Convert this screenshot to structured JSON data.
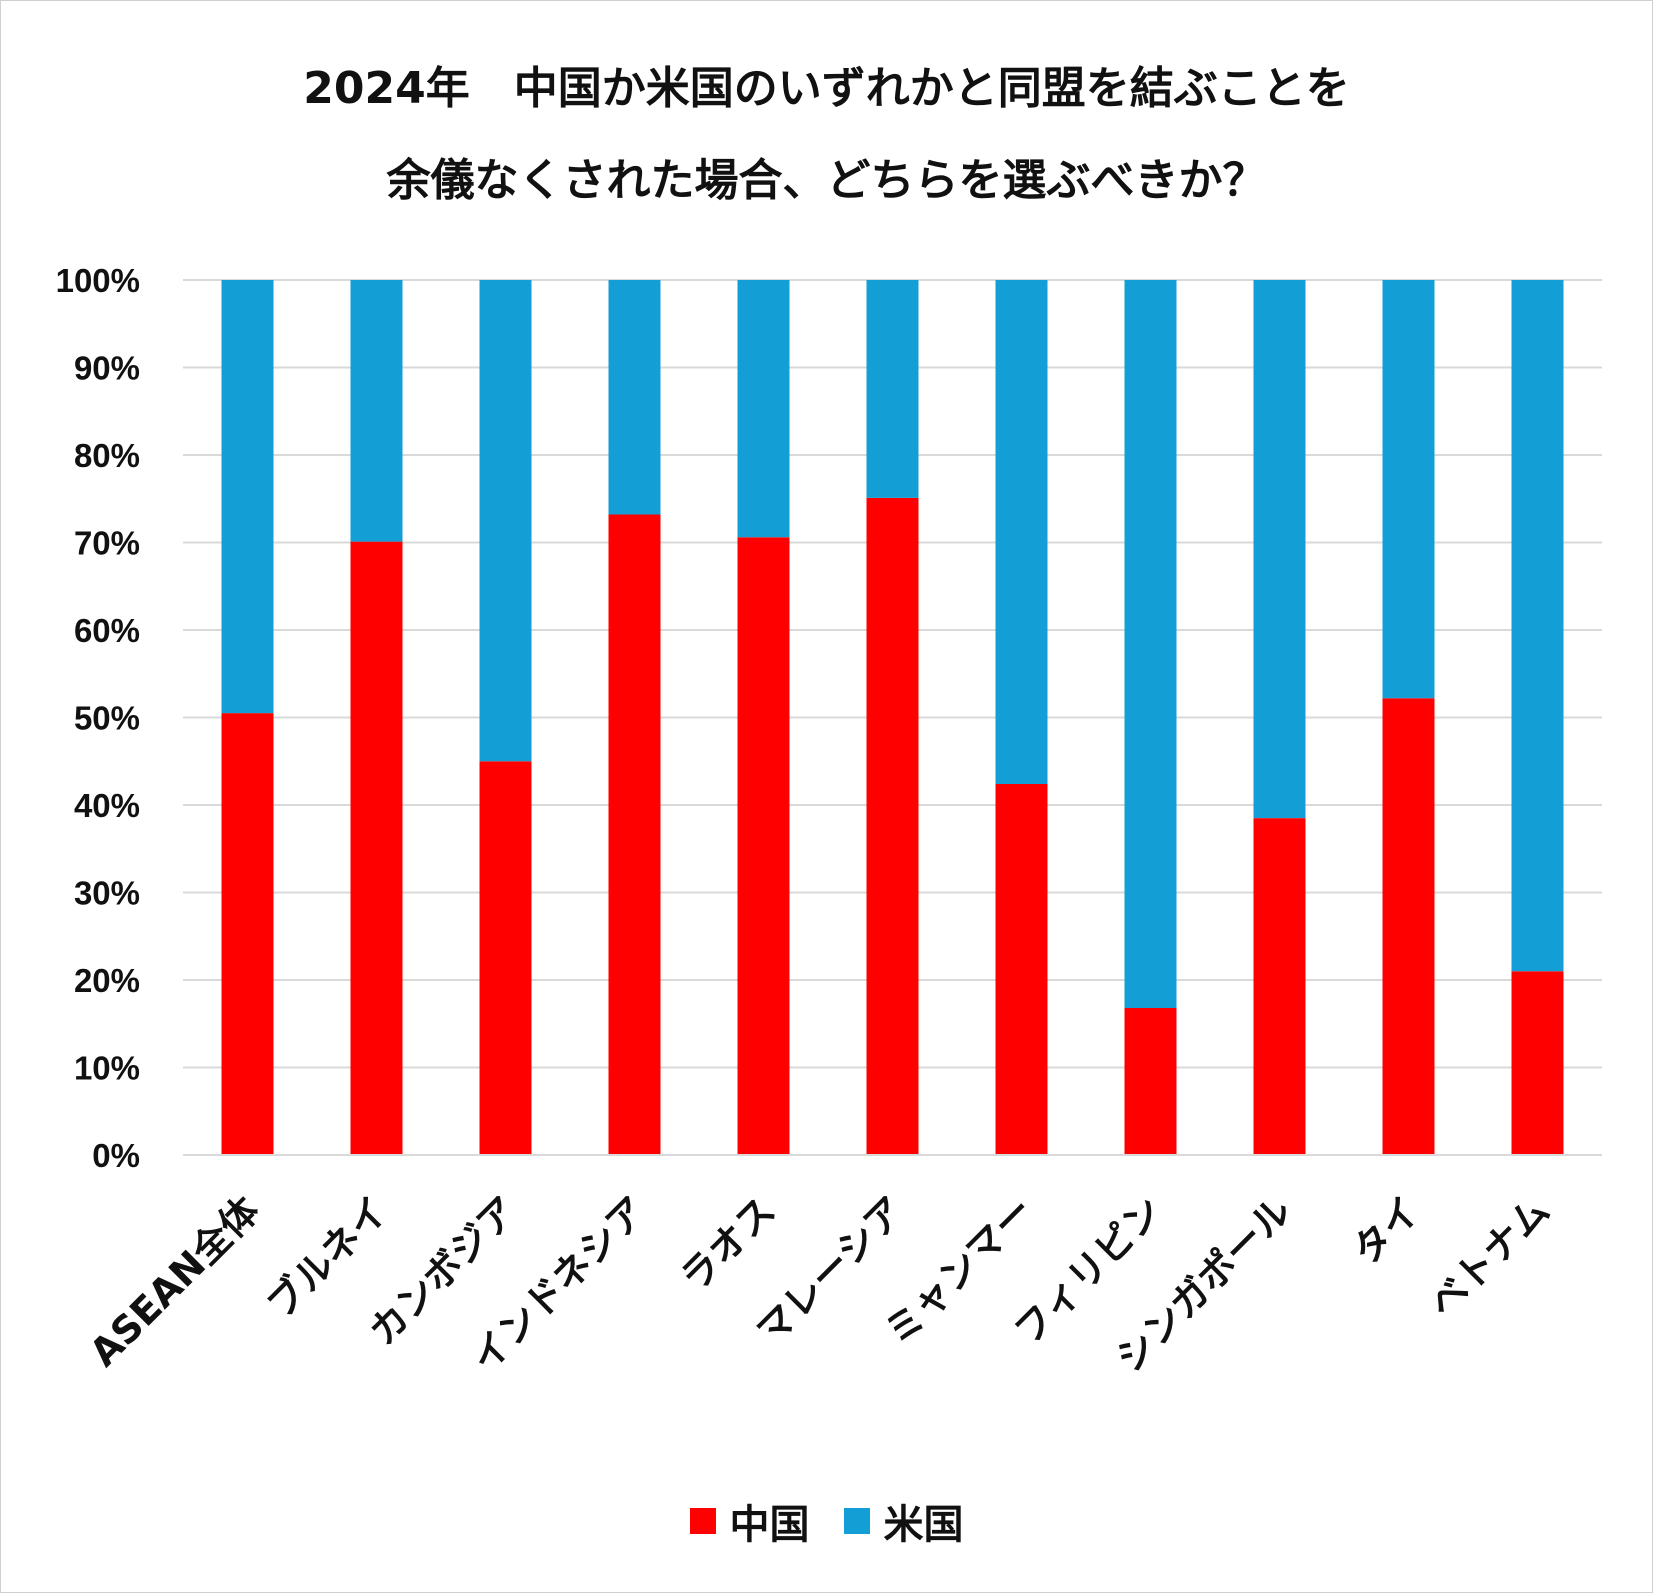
{
  "chart_data": {
    "type": "bar",
    "stacked": true,
    "title_lines": [
      "2024年　中国か米国のいずれかと同盟を結ぶことを",
      "余儀なくされた場合、どちらを選ぶべきか？"
    ],
    "categories": [
      "ASEAN全体",
      "ブルネイ",
      "カンボジア",
      "インドネシア",
      "ラオス",
      "マレーシア",
      "ミャンマー",
      "フィリピン",
      "シンガポール",
      "タイ",
      "ベトナム"
    ],
    "series": [
      {
        "name": "中国",
        "color": "#ff0000",
        "values": [
          50.5,
          70.1,
          45.0,
          73.2,
          70.6,
          75.1,
          42.4,
          16.8,
          38.5,
          52.2,
          21.0
        ]
      },
      {
        "name": "米国",
        "color": "#139fd6",
        "values": [
          49.5,
          29.9,
          55.0,
          26.8,
          29.4,
          24.9,
          57.6,
          83.2,
          61.5,
          47.8,
          79.0
        ]
      }
    ],
    "y_ticks": [
      "0%",
      "10%",
      "20%",
      "30%",
      "40%",
      "50%",
      "60%",
      "70%",
      "80%",
      "90%",
      "100%"
    ],
    "ylim": [
      0,
      100
    ],
    "grid": true,
    "legend_position": "bottom"
  }
}
